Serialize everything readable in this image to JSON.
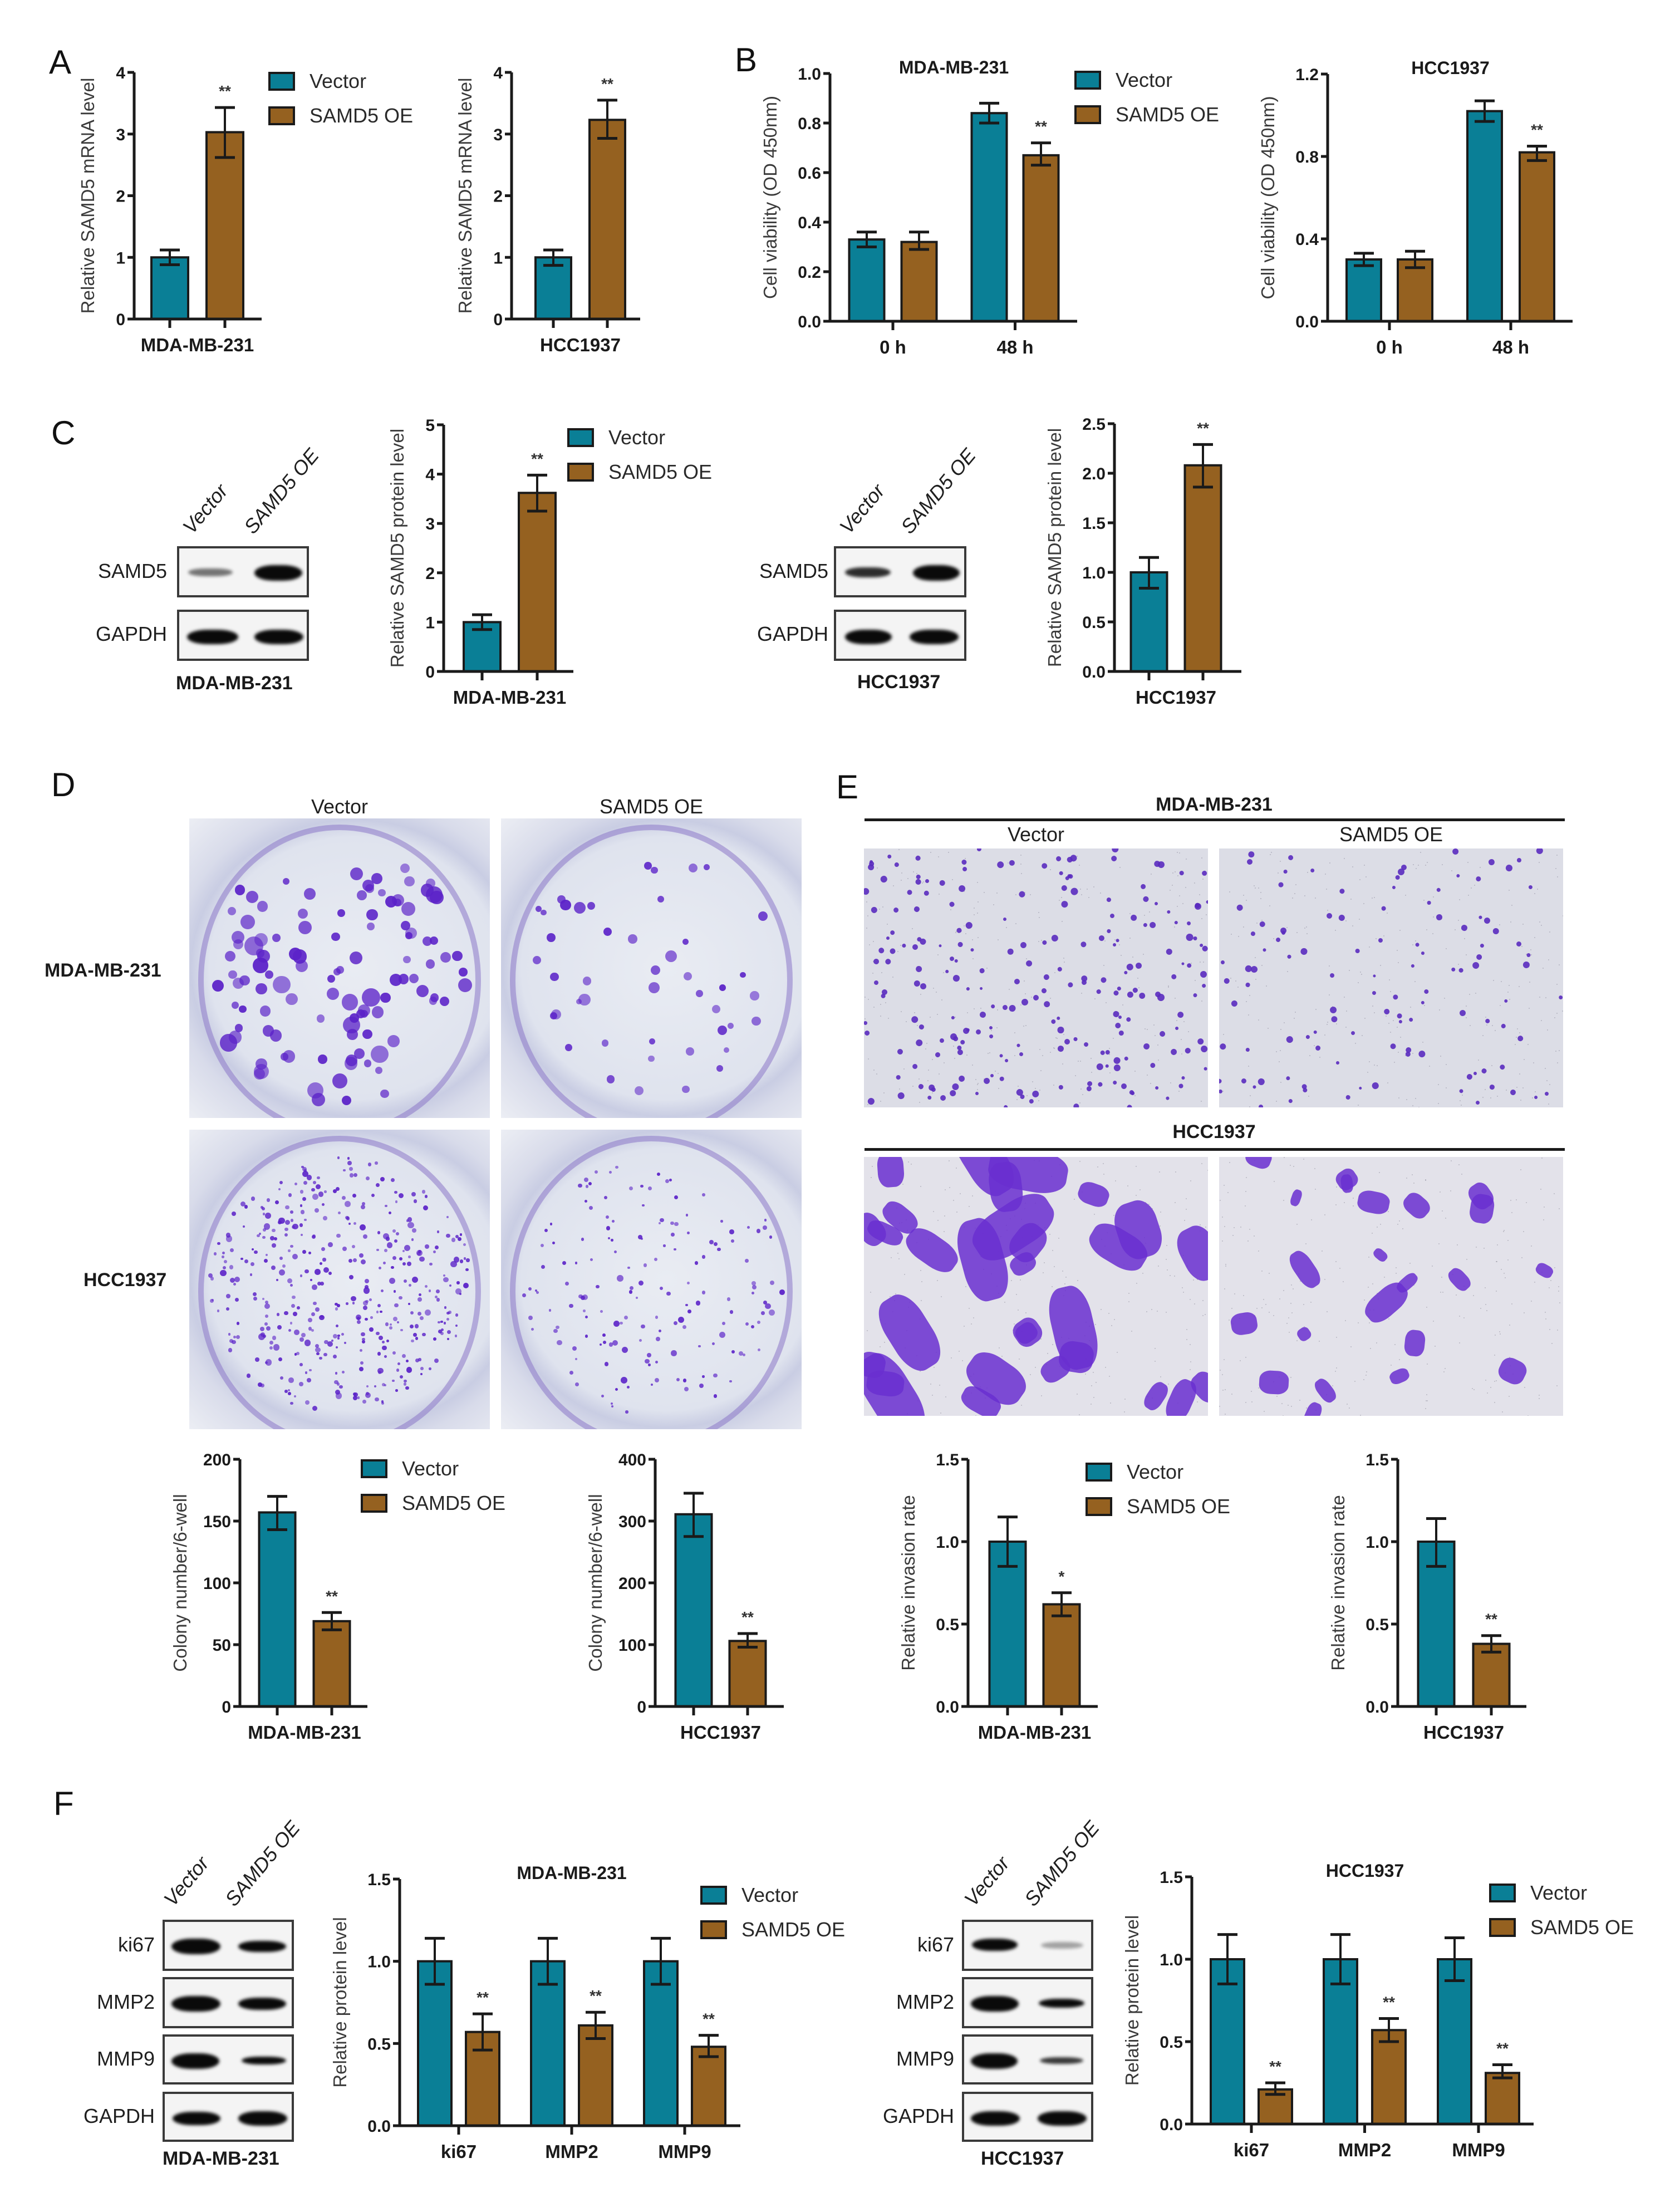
{
  "colors": {
    "vector": "#0a7f96",
    "oe": "#956120",
    "axis": "#1a1a1a"
  },
  "legend": {
    "vector": "Vector",
    "oe": "SAMD5 OE"
  },
  "panels": {
    "A": {
      "letter": "A"
    },
    "B": {
      "letter": "B"
    },
    "C": {
      "letter": "C",
      "blot_mda": {
        "lanes": [
          "Vector",
          "SAMD5 OE"
        ],
        "rows": [
          "SAMD5",
          "GAPDH"
        ],
        "cell_line": "MDA-MB-231"
      },
      "blot_hcc": {
        "lanes": [
          "Vector",
          "SAMD5 OE"
        ],
        "rows": [
          "SAMD5",
          "GAPDH"
        ],
        "cell_line": "HCC1937"
      }
    },
    "D": {
      "letter": "D",
      "columns": [
        "Vector",
        "SAMD5 OE"
      ],
      "rows": [
        "MDA-MB-231",
        "HCC1937"
      ]
    },
    "E": {
      "letter": "E",
      "group1_title": "MDA-MB-231",
      "group2_title": "HCC1937",
      "columns": [
        "Vector",
        "SAMD5 OE"
      ]
    },
    "F": {
      "letter": "F",
      "blot_mda": {
        "lanes": [
          "Vector",
          "SAMD5 OE"
        ],
        "rows": [
          "ki67",
          "MMP2",
          "MMP9",
          "GAPDH"
        ],
        "cell_line": "MDA-MB-231"
      },
      "blot_hcc": {
        "lanes": [
          "Vector",
          "SAMD5 OE"
        ],
        "rows": [
          "ki67",
          "MMP2",
          "MMP9",
          "GAPDH"
        ],
        "cell_line": "HCC1937"
      }
    }
  },
  "chart_data": [
    {
      "id": "A1",
      "panel": "A",
      "type": "bar",
      "title": "",
      "ylabel": "Relative SAMD5 mRNA level",
      "xlabel": "",
      "categories": [
        "MDA-MB-231"
      ],
      "ylim": [
        0,
        4
      ],
      "yticks": [
        "0",
        "1",
        "2",
        "3",
        "4"
      ],
      "series": [
        {
          "name": "Vector",
          "values": [
            1.0
          ],
          "err_low": [
            0.88
          ],
          "err_high": [
            1.12
          ],
          "sig": [
            ""
          ]
        },
        {
          "name": "SAMD5 OE",
          "values": [
            3.03
          ],
          "err_low": [
            2.62
          ],
          "err_high": [
            3.43
          ],
          "sig": [
            "**"
          ]
        }
      ],
      "legend": "right",
      "grid": false
    },
    {
      "id": "A2",
      "panel": "A",
      "type": "bar",
      "title": "",
      "ylabel": "Relative SAMD5 mRNA level",
      "xlabel": "",
      "categories": [
        "HCC1937"
      ],
      "ylim": [
        0,
        4
      ],
      "yticks": [
        "0",
        "1",
        "2",
        "3",
        "4"
      ],
      "series": [
        {
          "name": "Vector",
          "values": [
            1.0
          ],
          "err_low": [
            0.87
          ],
          "err_high": [
            1.12
          ],
          "sig": [
            ""
          ]
        },
        {
          "name": "SAMD5 OE",
          "values": [
            3.23
          ],
          "err_low": [
            2.93
          ],
          "err_high": [
            3.55
          ],
          "sig": [
            "**"
          ]
        }
      ],
      "legend": "none",
      "grid": false
    },
    {
      "id": "B1",
      "panel": "B",
      "type": "bar",
      "title": "MDA-MB-231",
      "ylabel": "Cell viability (OD 450nm)",
      "xlabel": "",
      "categories": [
        "0 h",
        "48 h"
      ],
      "ylim": [
        0,
        1.0
      ],
      "yticks": [
        "0.0",
        "0.2",
        "0.4",
        "0.6",
        "0.8",
        "1.0"
      ],
      "series": [
        {
          "name": "Vector",
          "values": [
            0.33,
            0.84
          ],
          "err_low": [
            0.3,
            0.8
          ],
          "err_high": [
            0.36,
            0.88
          ],
          "sig": [
            "",
            ""
          ]
        },
        {
          "name": "SAMD5 OE",
          "values": [
            0.32,
            0.67
          ],
          "err_low": [
            0.29,
            0.63
          ],
          "err_high": [
            0.36,
            0.72
          ],
          "sig": [
            "",
            "**"
          ]
        }
      ],
      "legend": "right",
      "grid": false
    },
    {
      "id": "B2",
      "panel": "B",
      "type": "bar",
      "title": "HCC1937",
      "ylabel": "Cell viability (OD 450nm)",
      "xlabel": "",
      "categories": [
        "0 h",
        "48 h"
      ],
      "ylim": [
        0,
        1.2
      ],
      "yticks": [
        "0.0",
        "0.4",
        "0.8",
        "1.2"
      ],
      "series": [
        {
          "name": "Vector",
          "values": [
            0.3,
            1.02
          ],
          "err_low": [
            0.27,
            0.97
          ],
          "err_high": [
            0.33,
            1.07
          ],
          "sig": [
            "",
            ""
          ]
        },
        {
          "name": "SAMD5 OE",
          "values": [
            0.3,
            0.82
          ],
          "err_low": [
            0.26,
            0.78
          ],
          "err_high": [
            0.34,
            0.85
          ],
          "sig": [
            "",
            "**"
          ]
        }
      ],
      "legend": "none",
      "grid": false
    },
    {
      "id": "C1",
      "panel": "C",
      "type": "bar",
      "title": "",
      "ylabel": "Relative SAMD5 protein level",
      "xlabel": "",
      "categories": [
        "MDA-MB-231"
      ],
      "ylim": [
        0,
        5
      ],
      "yticks": [
        "0",
        "1",
        "2",
        "3",
        "4",
        "5"
      ],
      "series": [
        {
          "name": "Vector",
          "values": [
            1.0
          ],
          "err_low": [
            0.85
          ],
          "err_high": [
            1.15
          ],
          "sig": [
            ""
          ]
        },
        {
          "name": "SAMD5 OE",
          "values": [
            3.62
          ],
          "err_low": [
            3.25
          ],
          "err_high": [
            3.98
          ],
          "sig": [
            "**"
          ]
        }
      ],
      "legend": "right",
      "grid": false
    },
    {
      "id": "C2",
      "panel": "C",
      "type": "bar",
      "title": "",
      "ylabel": "Relative SAMD5 protein level",
      "xlabel": "",
      "categories": [
        "HCC1937"
      ],
      "ylim": [
        0,
        2.5
      ],
      "yticks": [
        "0.0",
        "0.5",
        "1.0",
        "1.5",
        "2.0",
        "2.5"
      ],
      "series": [
        {
          "name": "Vector",
          "values": [
            1.0
          ],
          "err_low": [
            0.84
          ],
          "err_high": [
            1.15
          ],
          "sig": [
            ""
          ]
        },
        {
          "name": "SAMD5 OE",
          "values": [
            2.08
          ],
          "err_low": [
            1.86
          ],
          "err_high": [
            2.29
          ],
          "sig": [
            "**"
          ]
        }
      ],
      "legend": "none",
      "grid": false
    },
    {
      "id": "D1",
      "panel": "D",
      "type": "bar",
      "title": "",
      "ylabel": "Colony number/6-well",
      "xlabel": "",
      "categories": [
        "MDA-MB-231"
      ],
      "ylim": [
        0,
        200
      ],
      "yticks": [
        "0",
        "50",
        "100",
        "150",
        "200"
      ],
      "series": [
        {
          "name": "Vector",
          "values": [
            157
          ],
          "err_low": [
            143
          ],
          "err_high": [
            170
          ],
          "sig": [
            ""
          ]
        },
        {
          "name": "SAMD5 OE",
          "values": [
            69
          ],
          "err_low": [
            62
          ],
          "err_high": [
            76
          ],
          "sig": [
            "**"
          ]
        }
      ],
      "legend": "right",
      "grid": false
    },
    {
      "id": "D2",
      "panel": "D",
      "type": "bar",
      "title": "",
      "ylabel": "Colony number/6-well",
      "xlabel": "",
      "categories": [
        "HCC1937"
      ],
      "ylim": [
        0,
        400
      ],
      "yticks": [
        "0",
        "100",
        "200",
        "300",
        "400"
      ],
      "series": [
        {
          "name": "Vector",
          "values": [
            311
          ],
          "err_low": [
            275
          ],
          "err_high": [
            345
          ],
          "sig": [
            ""
          ]
        },
        {
          "name": "SAMD5 OE",
          "values": [
            106
          ],
          "err_low": [
            96
          ],
          "err_high": [
            118
          ],
          "sig": [
            "**"
          ]
        }
      ],
      "legend": "none",
      "grid": false
    },
    {
      "id": "E1",
      "panel": "E",
      "type": "bar",
      "title": "",
      "ylabel": "Relative invasion rate",
      "xlabel": "",
      "categories": [
        "MDA-MB-231"
      ],
      "ylim": [
        0,
        1.5
      ],
      "yticks": [
        "0.0",
        "0.5",
        "1.0",
        "1.5"
      ],
      "series": [
        {
          "name": "Vector",
          "values": [
            1.0
          ],
          "err_low": [
            0.85
          ],
          "err_high": [
            1.15
          ],
          "sig": [
            ""
          ]
        },
        {
          "name": "SAMD5 OE",
          "values": [
            0.62
          ],
          "err_low": [
            0.55
          ],
          "err_high": [
            0.69
          ],
          "sig": [
            "*"
          ]
        }
      ],
      "legend": "right",
      "grid": false
    },
    {
      "id": "E2",
      "panel": "E",
      "type": "bar",
      "title": "",
      "ylabel": "Relative invasion rate",
      "xlabel": "",
      "categories": [
        "HCC1937"
      ],
      "ylim": [
        0,
        1.5
      ],
      "yticks": [
        "0.0",
        "0.5",
        "1.0",
        "1.5"
      ],
      "series": [
        {
          "name": "Vector",
          "values": [
            1.0
          ],
          "err_low": [
            0.85
          ],
          "err_high": [
            1.14
          ],
          "sig": [
            ""
          ]
        },
        {
          "name": "SAMD5 OE",
          "values": [
            0.38
          ],
          "err_low": [
            0.33
          ],
          "err_high": [
            0.43
          ],
          "sig": [
            "**"
          ]
        }
      ],
      "legend": "none",
      "grid": false
    },
    {
      "id": "F1",
      "panel": "F",
      "type": "bar",
      "title": "MDA-MB-231",
      "ylabel": "Relative protein level",
      "xlabel": "",
      "categories": [
        "ki67",
        "MMP2",
        "MMP9"
      ],
      "ylim": [
        0,
        1.5
      ],
      "yticks": [
        "0.0",
        "0.5",
        "1.0",
        "1.5"
      ],
      "series": [
        {
          "name": "Vector",
          "values": [
            1.0,
            1.0,
            1.0
          ],
          "err_low": [
            0.86,
            0.86,
            0.86
          ],
          "err_high": [
            1.14,
            1.14,
            1.14
          ],
          "sig": [
            "",
            "",
            ""
          ]
        },
        {
          "name": "SAMD5 OE",
          "values": [
            0.57,
            0.61,
            0.48
          ],
          "err_low": [
            0.46,
            0.53,
            0.42
          ],
          "err_high": [
            0.68,
            0.69,
            0.55
          ],
          "sig": [
            "**",
            "**",
            "**"
          ]
        }
      ],
      "legend": "right",
      "grid": false
    },
    {
      "id": "F2",
      "panel": "F",
      "type": "bar",
      "title": "HCC1937",
      "ylabel": "Relative protein level",
      "xlabel": "",
      "categories": [
        "ki67",
        "MMP2",
        "MMP9"
      ],
      "ylim": [
        0,
        1.5
      ],
      "yticks": [
        "0.0",
        "0.5",
        "1.0",
        "1.5"
      ],
      "series": [
        {
          "name": "Vector",
          "values": [
            1.0,
            1.0,
            1.0
          ],
          "err_low": [
            0.85,
            0.85,
            0.87
          ],
          "err_high": [
            1.15,
            1.15,
            1.13
          ],
          "sig": [
            "",
            "",
            ""
          ]
        },
        {
          "name": "SAMD5 OE",
          "values": [
            0.21,
            0.57,
            0.31
          ],
          "err_low": [
            0.18,
            0.5,
            0.28
          ],
          "err_high": [
            0.25,
            0.64,
            0.36
          ],
          "sig": [
            "**",
            "**",
            "**"
          ]
        }
      ],
      "legend": "right",
      "grid": false
    }
  ]
}
